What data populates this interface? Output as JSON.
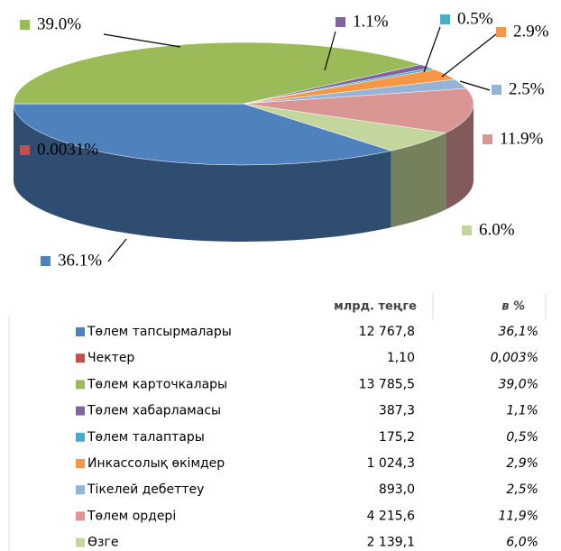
{
  "chart_data": {
    "type": "pie",
    "categories": [
      "Төлем тапсырмалары",
      "Чектер",
      "Төлем карточкалары",
      "Төлем хабарламасы",
      "Төлем талаптары",
      "Инкассолық өкімдер",
      "Тікелей дебеттеу",
      "Төлем ордері",
      "Өзге"
    ],
    "values": [
      36.1,
      0.0031,
      39.0,
      1.1,
      0.5,
      2.9,
      2.5,
      11.9,
      6.0
    ],
    "value_labels": [
      "36.1%",
      "0.0031%",
      "39.0%",
      "1.1%",
      "0.5%",
      "2.9%",
      "2.5%",
      "11.9%",
      "6.0%"
    ],
    "colors": [
      "#4f81bd",
      "#c0504d",
      "#9bbb59",
      "#8064a2",
      "#4bacc6",
      "#f79646",
      "#95b3d7",
      "#d99694",
      "#c3d69b"
    ],
    "table": {
      "columns": [
        "млрд. теңге",
        "в %"
      ],
      "rows": [
        [
          "12 767,8",
          "36,1%"
        ],
        [
          "1,10",
          "0,003%"
        ],
        [
          "13 785,5",
          "39,0%"
        ],
        [
          "387,3",
          "1,1%"
        ],
        [
          "175,2",
          "0,5%"
        ],
        [
          "1 024,3",
          "2,9%"
        ],
        [
          "893,0",
          "2,5%"
        ],
        [
          "4 215,6",
          "11,9%"
        ],
        [
          "2 139,1",
          "6,0%"
        ]
      ]
    }
  }
}
